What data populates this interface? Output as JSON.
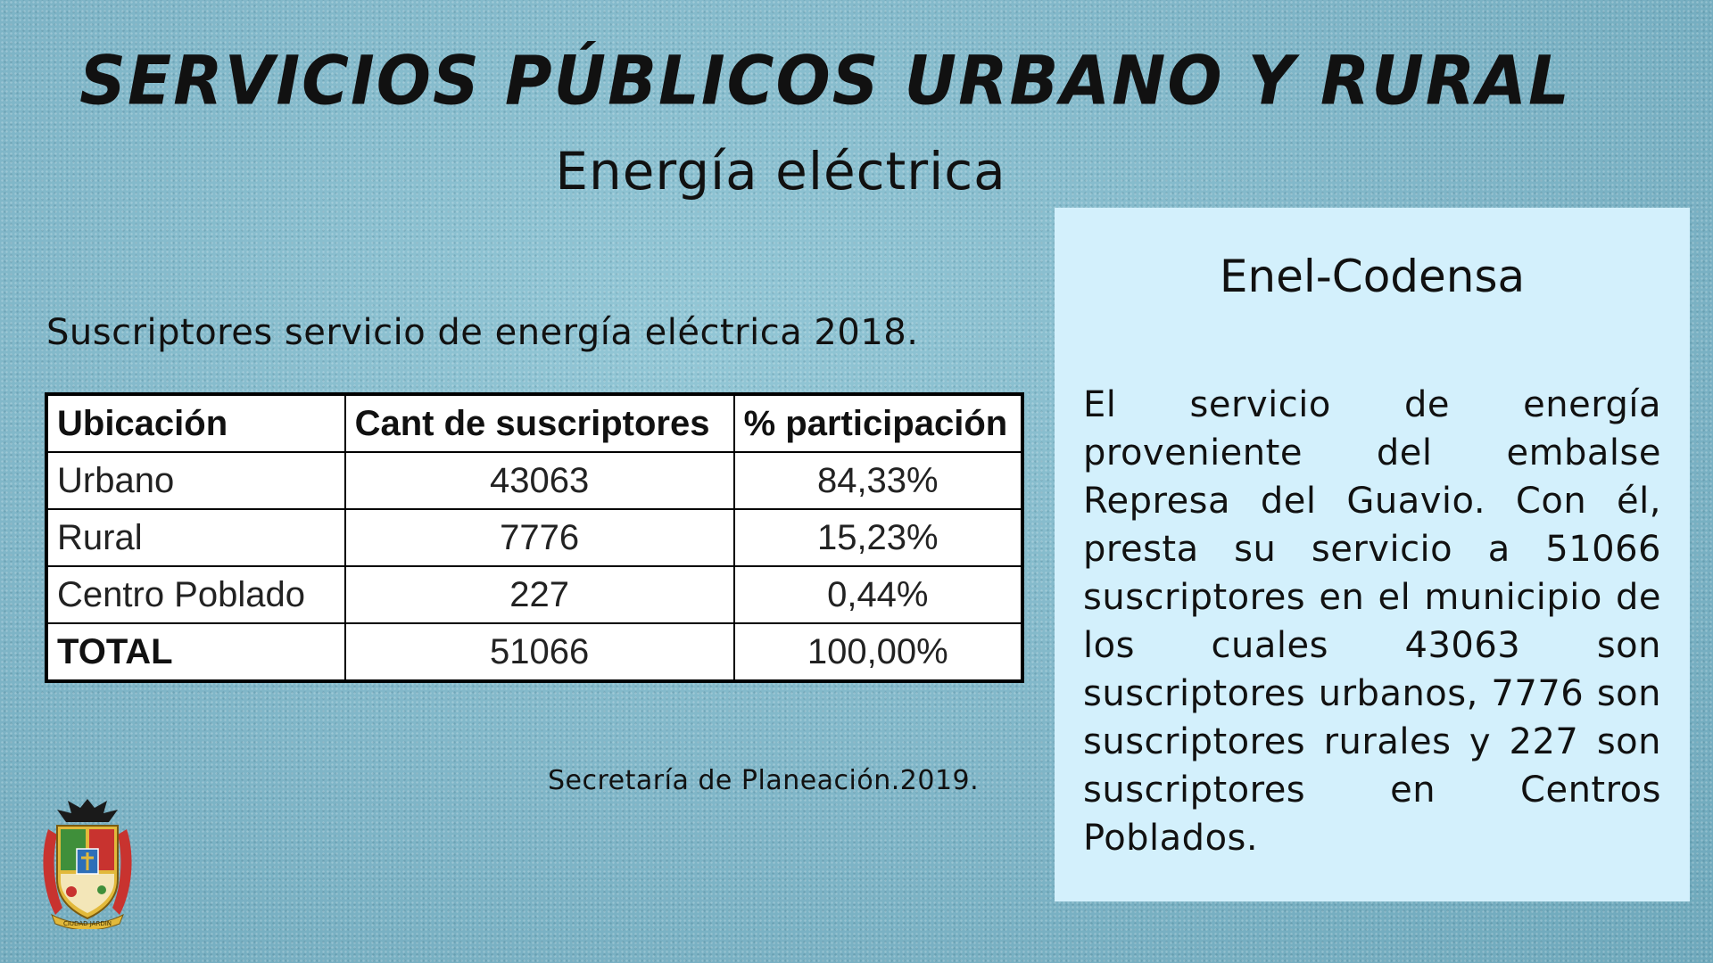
{
  "header": {
    "title": "SERVICIOS PÚBLICOS URBANO Y RURAL",
    "subtitle": "Energía eléctrica"
  },
  "caption": "Suscriptores servicio de energía eléctrica 2018.",
  "table": {
    "headers": [
      "Ubicación",
      "Cant de suscriptores",
      "% participación"
    ],
    "rows": [
      [
        "Urbano",
        "43063",
        "84,33%"
      ],
      [
        "Rural",
        "7776",
        "15,23%"
      ],
      [
        "Centro Poblado",
        "227",
        "0,44%"
      ],
      [
        "TOTAL",
        "51066",
        "100,00%"
      ]
    ]
  },
  "source": "Secretaría de Planeación.2019.",
  "panel": {
    "title": "Enel-Codensa",
    "body": "El servicio de energía proveniente del embalse Represa del Guavio. Con él, presta su servicio a 51066 suscriptores en el municipio de los cuales 43063 son suscriptores urbanos, 7776 son suscriptores rurales y 227 son suscriptores en Centros Poblados."
  },
  "logo": {
    "icon": "municipal-coat-of-arms-icon",
    "motto": "CIUDAD JARDÍN",
    "colors": {
      "gold": "#e2b93b",
      "green": "#3f8f3a",
      "blue": "#2d6fb8",
      "red": "#c8332f"
    }
  }
}
